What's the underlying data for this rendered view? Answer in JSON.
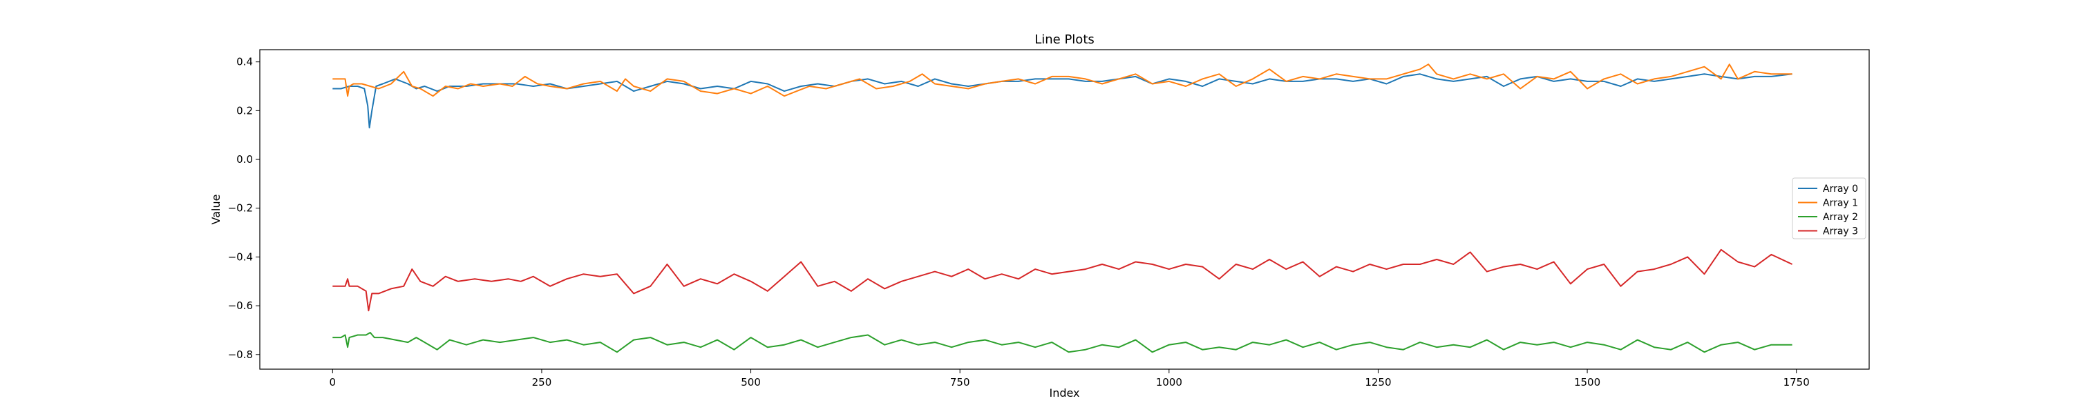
{
  "chart_data": {
    "type": "line",
    "title": "Line Plots",
    "xlabel": "Index",
    "ylabel": "Value",
    "xlim": [
      -87,
      1837
    ],
    "ylim": [
      -0.86,
      0.45
    ],
    "xticks": [
      0,
      250,
      500,
      750,
      1000,
      1250,
      1500,
      1750
    ],
    "yticks": [
      -0.8,
      -0.6,
      -0.4,
      -0.2,
      0.0,
      0.2,
      0.4
    ],
    "ytick_labels": [
      "−0.8",
      "−0.6",
      "−0.4",
      "−0.2",
      "0.0",
      "0.2",
      "0.4"
    ],
    "grid": false,
    "legend_position": "center-right",
    "series": [
      {
        "name": "Array 0",
        "color": "#1f77b4",
        "x": [
          0,
          10,
          20,
          30,
          38,
          42,
          44,
          47,
          52,
          60,
          75,
          90,
          100,
          110,
          125,
          140,
          160,
          180,
          200,
          220,
          240,
          260,
          280,
          300,
          320,
          340,
          360,
          380,
          400,
          420,
          440,
          460,
          480,
          500,
          520,
          540,
          560,
          580,
          600,
          620,
          640,
          660,
          680,
          700,
          720,
          740,
          760,
          780,
          800,
          820,
          840,
          860,
          880,
          900,
          920,
          940,
          960,
          980,
          1000,
          1020,
          1040,
          1060,
          1080,
          1100,
          1120,
          1140,
          1160,
          1180,
          1200,
          1220,
          1240,
          1260,
          1280,
          1300,
          1320,
          1340,
          1360,
          1380,
          1400,
          1420,
          1440,
          1460,
          1480,
          1500,
          1520,
          1540,
          1560,
          1580,
          1600,
          1620,
          1640,
          1660,
          1680,
          1700,
          1720,
          1745
        ],
        "values": [
          0.29,
          0.29,
          0.3,
          0.3,
          0.29,
          0.22,
          0.13,
          0.2,
          0.3,
          0.31,
          0.33,
          0.31,
          0.29,
          0.3,
          0.28,
          0.3,
          0.3,
          0.31,
          0.31,
          0.31,
          0.3,
          0.31,
          0.29,
          0.3,
          0.31,
          0.32,
          0.28,
          0.3,
          0.32,
          0.31,
          0.29,
          0.3,
          0.29,
          0.32,
          0.31,
          0.28,
          0.3,
          0.31,
          0.3,
          0.32,
          0.33,
          0.31,
          0.32,
          0.3,
          0.33,
          0.31,
          0.3,
          0.31,
          0.32,
          0.32,
          0.33,
          0.33,
          0.33,
          0.32,
          0.32,
          0.33,
          0.34,
          0.31,
          0.33,
          0.32,
          0.3,
          0.33,
          0.32,
          0.31,
          0.33,
          0.32,
          0.32,
          0.33,
          0.33,
          0.32,
          0.33,
          0.31,
          0.34,
          0.35,
          0.33,
          0.32,
          0.33,
          0.34,
          0.3,
          0.33,
          0.34,
          0.32,
          0.33,
          0.32,
          0.32,
          0.3,
          0.33,
          0.32,
          0.33,
          0.34,
          0.35,
          0.34,
          0.33,
          0.34,
          0.34,
          0.35
        ]
      },
      {
        "name": "Array 1",
        "color": "#ff7f0e",
        "x": [
          0,
          10,
          15,
          18,
          20,
          25,
          35,
          45,
          55,
          70,
          85,
          95,
          105,
          120,
          135,
          150,
          165,
          180,
          200,
          215,
          230,
          245,
          260,
          280,
          300,
          320,
          340,
          350,
          360,
          380,
          400,
          420,
          440,
          460,
          480,
          500,
          520,
          540,
          555,
          570,
          590,
          610,
          630,
          650,
          670,
          690,
          705,
          720,
          740,
          760,
          780,
          800,
          820,
          840,
          860,
          880,
          900,
          920,
          940,
          960,
          980,
          1000,
          1020,
          1040,
          1060,
          1080,
          1100,
          1120,
          1140,
          1160,
          1180,
          1200,
          1220,
          1240,
          1260,
          1280,
          1300,
          1310,
          1320,
          1340,
          1360,
          1380,
          1400,
          1420,
          1440,
          1460,
          1480,
          1500,
          1520,
          1540,
          1560,
          1580,
          1600,
          1620,
          1640,
          1660,
          1670,
          1680,
          1700,
          1720,
          1745
        ],
        "values": [
          0.33,
          0.33,
          0.33,
          0.26,
          0.3,
          0.31,
          0.31,
          0.3,
          0.29,
          0.31,
          0.36,
          0.3,
          0.29,
          0.26,
          0.3,
          0.29,
          0.31,
          0.3,
          0.31,
          0.3,
          0.34,
          0.31,
          0.3,
          0.29,
          0.31,
          0.32,
          0.28,
          0.33,
          0.3,
          0.28,
          0.33,
          0.32,
          0.28,
          0.27,
          0.29,
          0.27,
          0.3,
          0.26,
          0.28,
          0.3,
          0.29,
          0.31,
          0.33,
          0.29,
          0.3,
          0.32,
          0.35,
          0.31,
          0.3,
          0.29,
          0.31,
          0.32,
          0.33,
          0.31,
          0.34,
          0.34,
          0.33,
          0.31,
          0.33,
          0.35,
          0.31,
          0.32,
          0.3,
          0.33,
          0.35,
          0.3,
          0.33,
          0.37,
          0.32,
          0.34,
          0.33,
          0.35,
          0.34,
          0.33,
          0.33,
          0.35,
          0.37,
          0.39,
          0.35,
          0.33,
          0.35,
          0.33,
          0.35,
          0.29,
          0.34,
          0.33,
          0.36,
          0.29,
          0.33,
          0.35,
          0.31,
          0.33,
          0.34,
          0.36,
          0.38,
          0.33,
          0.39,
          0.33,
          0.36,
          0.35,
          0.35
        ]
      },
      {
        "name": "Array 2",
        "color": "#2ca02c",
        "x": [
          0,
          10,
          15,
          18,
          20,
          30,
          40,
          45,
          50,
          60,
          75,
          90,
          100,
          110,
          125,
          140,
          160,
          180,
          200,
          220,
          240,
          260,
          280,
          300,
          320,
          340,
          360,
          380,
          400,
          420,
          440,
          460,
          480,
          500,
          520,
          540,
          560,
          580,
          600,
          620,
          640,
          660,
          680,
          700,
          720,
          740,
          760,
          780,
          800,
          820,
          840,
          860,
          880,
          900,
          920,
          940,
          960,
          980,
          1000,
          1020,
          1040,
          1060,
          1080,
          1100,
          1120,
          1140,
          1160,
          1180,
          1200,
          1220,
          1240,
          1260,
          1280,
          1300,
          1320,
          1340,
          1360,
          1380,
          1400,
          1420,
          1440,
          1460,
          1480,
          1500,
          1520,
          1540,
          1560,
          1580,
          1600,
          1620,
          1640,
          1660,
          1680,
          1700,
          1720,
          1745
        ],
        "values": [
          -0.73,
          -0.73,
          -0.72,
          -0.77,
          -0.73,
          -0.72,
          -0.72,
          -0.71,
          -0.73,
          -0.73,
          -0.74,
          -0.75,
          -0.73,
          -0.75,
          -0.78,
          -0.74,
          -0.76,
          -0.74,
          -0.75,
          -0.74,
          -0.73,
          -0.75,
          -0.74,
          -0.76,
          -0.75,
          -0.79,
          -0.74,
          -0.73,
          -0.76,
          -0.75,
          -0.77,
          -0.74,
          -0.78,
          -0.73,
          -0.77,
          -0.76,
          -0.74,
          -0.77,
          -0.75,
          -0.73,
          -0.72,
          -0.76,
          -0.74,
          -0.76,
          -0.75,
          -0.77,
          -0.75,
          -0.74,
          -0.76,
          -0.75,
          -0.77,
          -0.75,
          -0.79,
          -0.78,
          -0.76,
          -0.77,
          -0.74,
          -0.79,
          -0.76,
          -0.75,
          -0.78,
          -0.77,
          -0.78,
          -0.75,
          -0.76,
          -0.74,
          -0.77,
          -0.75,
          -0.78,
          -0.76,
          -0.75,
          -0.77,
          -0.78,
          -0.75,
          -0.77,
          -0.76,
          -0.77,
          -0.74,
          -0.78,
          -0.75,
          -0.76,
          -0.75,
          -0.77,
          -0.75,
          -0.76,
          -0.78,
          -0.74,
          -0.77,
          -0.78,
          -0.75,
          -0.79,
          -0.76,
          -0.75,
          -0.78,
          -0.76,
          -0.76
        ]
      },
      {
        "name": "Array 3",
        "color": "#d62728",
        "x": [
          0,
          10,
          15,
          18,
          20,
          30,
          40,
          43,
          47,
          55,
          70,
          85,
          95,
          105,
          120,
          135,
          150,
          170,
          190,
          210,
          225,
          240,
          260,
          280,
          300,
          320,
          340,
          360,
          380,
          400,
          420,
          440,
          460,
          480,
          500,
          520,
          540,
          560,
          580,
          600,
          620,
          640,
          660,
          680,
          700,
          720,
          740,
          760,
          780,
          800,
          820,
          840,
          860,
          880,
          900,
          920,
          940,
          960,
          980,
          1000,
          1020,
          1040,
          1060,
          1080,
          1100,
          1120,
          1140,
          1160,
          1180,
          1200,
          1220,
          1240,
          1260,
          1280,
          1300,
          1320,
          1340,
          1360,
          1380,
          1400,
          1420,
          1440,
          1460,
          1480,
          1500,
          1520,
          1540,
          1560,
          1580,
          1600,
          1620,
          1640,
          1660,
          1680,
          1700,
          1720,
          1745
        ],
        "values": [
          -0.52,
          -0.52,
          -0.52,
          -0.49,
          -0.52,
          -0.52,
          -0.54,
          -0.62,
          -0.55,
          -0.55,
          -0.53,
          -0.52,
          -0.45,
          -0.5,
          -0.52,
          -0.48,
          -0.5,
          -0.49,
          -0.5,
          -0.49,
          -0.5,
          -0.48,
          -0.52,
          -0.49,
          -0.47,
          -0.48,
          -0.47,
          -0.55,
          -0.52,
          -0.43,
          -0.52,
          -0.49,
          -0.51,
          -0.47,
          -0.5,
          -0.54,
          -0.48,
          -0.42,
          -0.52,
          -0.5,
          -0.54,
          -0.49,
          -0.53,
          -0.5,
          -0.48,
          -0.46,
          -0.48,
          -0.45,
          -0.49,
          -0.47,
          -0.49,
          -0.45,
          -0.47,
          -0.46,
          -0.45,
          -0.43,
          -0.45,
          -0.42,
          -0.43,
          -0.45,
          -0.43,
          -0.44,
          -0.49,
          -0.43,
          -0.45,
          -0.41,
          -0.45,
          -0.42,
          -0.48,
          -0.44,
          -0.46,
          -0.43,
          -0.45,
          -0.43,
          -0.43,
          -0.41,
          -0.43,
          -0.38,
          -0.46,
          -0.44,
          -0.43,
          -0.45,
          -0.42,
          -0.51,
          -0.45,
          -0.43,
          -0.52,
          -0.46,
          -0.45,
          -0.43,
          -0.4,
          -0.47,
          -0.37,
          -0.42,
          -0.44,
          -0.39,
          -0.43
        ]
      }
    ]
  }
}
